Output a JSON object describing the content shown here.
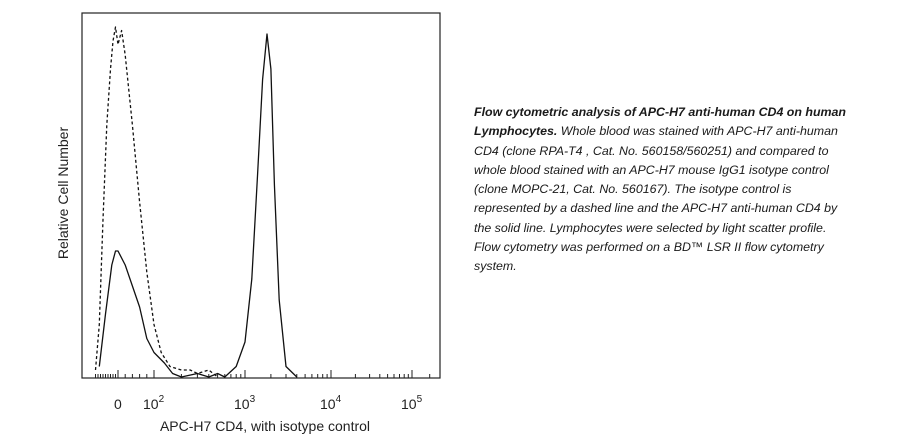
{
  "chart_data": {
    "type": "line",
    "xlabel": "APC-H7 CD4, with isotype control",
    "ylabel": "Relative Cell Number",
    "x_scale": "biexponential",
    "x_ticks": [
      {
        "base": "0",
        "exp": ""
      },
      {
        "base": "10",
        "exp": "2"
      },
      {
        "base": "10",
        "exp": "3"
      },
      {
        "base": "10",
        "exp": "4"
      },
      {
        "base": "10",
        "exp": "5"
      }
    ],
    "x_tick_values": [
      0,
      100,
      1000,
      10000,
      100000
    ],
    "grid": false,
    "legend": "none",
    "series": [
      {
        "style": "solid",
        "x": [
          -150,
          -100,
          -50,
          -20,
          0,
          20,
          40,
          60,
          80,
          100,
          130,
          160,
          200,
          300,
          400,
          500,
          600,
          800,
          1000,
          1200,
          1400,
          1600,
          1800,
          2000,
          2200,
          2500,
          3000,
          4000
        ],
        "y": [
          0.03,
          0.18,
          0.32,
          0.36,
          0.36,
          0.32,
          0.26,
          0.2,
          0.11,
          0.07,
          0.04,
          0.01,
          0.0,
          0.01,
          0.0,
          0.01,
          0.0,
          0.03,
          0.1,
          0.28,
          0.58,
          0.85,
          0.98,
          0.88,
          0.55,
          0.22,
          0.03,
          0.0
        ]
      },
      {
        "style": "dashed",
        "x": [
          -180,
          -150,
          -120,
          -90,
          -60,
          -40,
          -20,
          0,
          10,
          20,
          40,
          60,
          80,
          100,
          120,
          150,
          200,
          250,
          300,
          400,
          500
        ],
        "y": [
          0.02,
          0.15,
          0.45,
          0.72,
          0.88,
          0.96,
          1.0,
          0.95,
          0.99,
          0.92,
          0.72,
          0.5,
          0.3,
          0.15,
          0.07,
          0.03,
          0.02,
          0.02,
          0.01,
          0.02,
          0.0
        ]
      }
    ]
  },
  "caption": {
    "title": "Flow cytometric analysis of APC-H7 anti-human CD4 on human Lymphocytes.",
    "body": "Whole blood was stained with APC-H7 anti-human CD4 (clone RPA-T4 , Cat. No. 560158/560251) and compared to whole blood stained with an APC-H7 mouse IgG1 isotype control (clone MOPC-21, Cat. No. 560167). The isotype control is represented by a dashed line and the APC-H7 anti-human CD4 by the solid line. Lymphocytes were selected by light scatter profile. Flow cytometry was performed on a BD™ LSR II flow cytometry system."
  }
}
